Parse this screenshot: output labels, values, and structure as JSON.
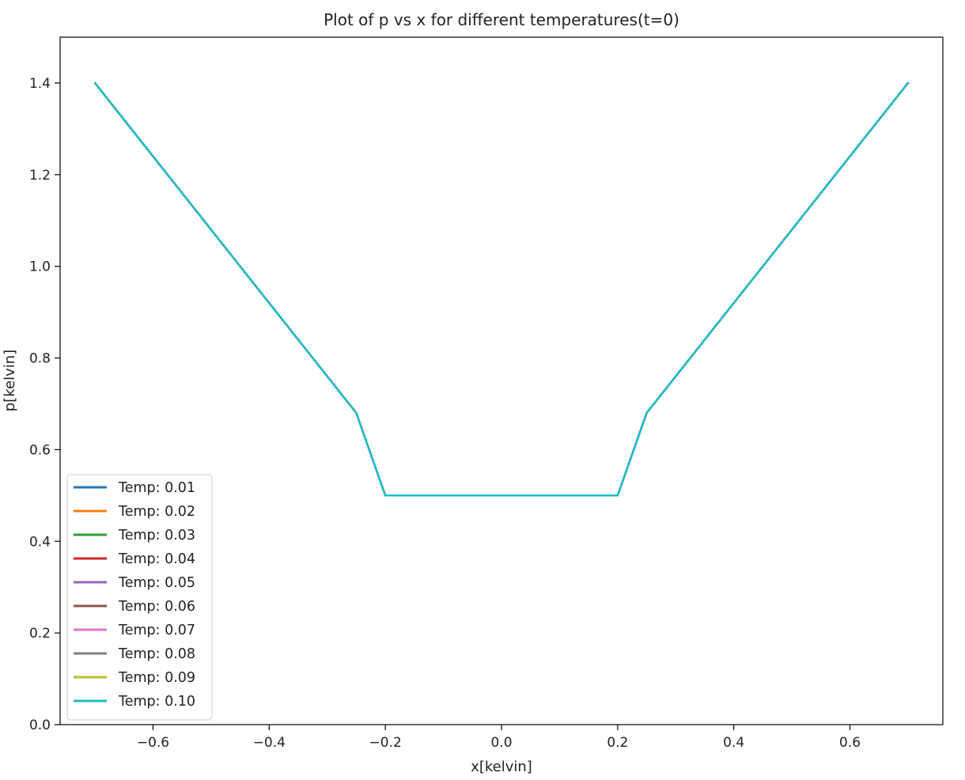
{
  "chart_data": {
    "type": "line",
    "title": "Plot of p vs x for different temperatures(t=0)",
    "xlabel": "x[kelvin]",
    "ylabel": "p[kelvin]",
    "xlim": [
      -0.76,
      0.76
    ],
    "ylim": [
      0.0,
      1.5
    ],
    "x_ticks": [
      -0.6,
      -0.4,
      -0.2,
      0.0,
      0.2,
      0.4,
      0.6
    ],
    "x_tick_labels": [
      "−0.6",
      "−0.4",
      "−0.2",
      "0.0",
      "0.2",
      "0.4",
      "0.6"
    ],
    "y_ticks": [
      0.0,
      0.2,
      0.4,
      0.6,
      0.8,
      1.0,
      1.2,
      1.4
    ],
    "y_tick_labels": [
      "0.0",
      "0.2",
      "0.4",
      "0.6",
      "0.8",
      "1.0",
      "1.2",
      "1.4"
    ],
    "grid": false,
    "legend_position": "lower-left",
    "x_range": [
      -0.7,
      0.7
    ],
    "series": [
      {
        "name": "Temp: 0.01",
        "temperature": 0.01,
        "color": "#1f77b4",
        "x": [
          -0.7,
          -0.6,
          -0.5,
          -0.4,
          -0.3,
          -0.25,
          -0.2,
          -0.1,
          0.0,
          0.1,
          0.2,
          0.25,
          0.3,
          0.4,
          0.5,
          0.6,
          0.7
        ],
        "y": [
          1.4,
          1.24,
          1.08,
          0.92,
          0.76,
          0.68,
          0.5,
          0.5,
          0.5,
          0.5,
          0.5,
          0.68,
          0.76,
          0.92,
          1.08,
          1.24,
          1.4
        ]
      },
      {
        "name": "Temp: 0.02",
        "temperature": 0.02,
        "color": "#ff7f0e",
        "x": [
          -0.7,
          -0.6,
          -0.5,
          -0.4,
          -0.3,
          -0.25,
          -0.2,
          -0.1,
          0.0,
          0.1,
          0.2,
          0.25,
          0.3,
          0.4,
          0.5,
          0.6,
          0.7
        ],
        "y": [
          1.4,
          1.24,
          1.08,
          0.92,
          0.76,
          0.68,
          0.5,
          0.5,
          0.5,
          0.5,
          0.5,
          0.68,
          0.76,
          0.92,
          1.08,
          1.24,
          1.4
        ]
      },
      {
        "name": "Temp: 0.03",
        "temperature": 0.03,
        "color": "#2ca02c",
        "x": [
          -0.7,
          -0.6,
          -0.5,
          -0.4,
          -0.3,
          -0.25,
          -0.2,
          -0.1,
          0.0,
          0.1,
          0.2,
          0.25,
          0.3,
          0.4,
          0.5,
          0.6,
          0.7
        ],
        "y": [
          1.4,
          1.24,
          1.08,
          0.92,
          0.76,
          0.68,
          0.5,
          0.5,
          0.5,
          0.5,
          0.5,
          0.68,
          0.76,
          0.92,
          1.08,
          1.24,
          1.4
        ]
      },
      {
        "name": "Temp: 0.04",
        "temperature": 0.04,
        "color": "#d62728",
        "x": [
          -0.7,
          -0.6,
          -0.5,
          -0.4,
          -0.3,
          -0.25,
          -0.2,
          -0.1,
          0.0,
          0.1,
          0.2,
          0.25,
          0.3,
          0.4,
          0.5,
          0.6,
          0.7
        ],
        "y": [
          1.4,
          1.24,
          1.08,
          0.92,
          0.76,
          0.68,
          0.5,
          0.5,
          0.5,
          0.5,
          0.5,
          0.68,
          0.76,
          0.92,
          1.08,
          1.24,
          1.4
        ]
      },
      {
        "name": "Temp: 0.05",
        "temperature": 0.05,
        "color": "#9467bd",
        "x": [
          -0.7,
          -0.6,
          -0.5,
          -0.4,
          -0.3,
          -0.25,
          -0.2,
          -0.1,
          0.0,
          0.1,
          0.2,
          0.25,
          0.3,
          0.4,
          0.5,
          0.6,
          0.7
        ],
        "y": [
          1.4,
          1.24,
          1.08,
          0.92,
          0.76,
          0.68,
          0.5,
          0.5,
          0.5,
          0.5,
          0.5,
          0.68,
          0.76,
          0.92,
          1.08,
          1.24,
          1.4
        ]
      },
      {
        "name": "Temp: 0.06",
        "temperature": 0.06,
        "color": "#8c564b",
        "x": [
          -0.7,
          -0.6,
          -0.5,
          -0.4,
          -0.3,
          -0.25,
          -0.2,
          -0.1,
          0.0,
          0.1,
          0.2,
          0.25,
          0.3,
          0.4,
          0.5,
          0.6,
          0.7
        ],
        "y": [
          1.4,
          1.24,
          1.08,
          0.92,
          0.76,
          0.68,
          0.5,
          0.5,
          0.5,
          0.5,
          0.5,
          0.68,
          0.76,
          0.92,
          1.08,
          1.24,
          1.4
        ]
      },
      {
        "name": "Temp: 0.07",
        "temperature": 0.07,
        "color": "#e377c2",
        "x": [
          -0.7,
          -0.6,
          -0.5,
          -0.4,
          -0.3,
          -0.25,
          -0.2,
          -0.1,
          0.0,
          0.1,
          0.2,
          0.25,
          0.3,
          0.4,
          0.5,
          0.6,
          0.7
        ],
        "y": [
          1.4,
          1.24,
          1.08,
          0.92,
          0.76,
          0.68,
          0.5,
          0.5,
          0.5,
          0.5,
          0.5,
          0.68,
          0.76,
          0.92,
          1.08,
          1.24,
          1.4
        ]
      },
      {
        "name": "Temp: 0.08",
        "temperature": 0.08,
        "color": "#7f7f7f",
        "x": [
          -0.7,
          -0.6,
          -0.5,
          -0.4,
          -0.3,
          -0.25,
          -0.2,
          -0.1,
          0.0,
          0.1,
          0.2,
          0.25,
          0.3,
          0.4,
          0.5,
          0.6,
          0.7
        ],
        "y": [
          1.4,
          1.24,
          1.08,
          0.92,
          0.76,
          0.68,
          0.5,
          0.5,
          0.5,
          0.5,
          0.5,
          0.68,
          0.76,
          0.92,
          1.08,
          1.24,
          1.4
        ]
      },
      {
        "name": "Temp: 0.09",
        "temperature": 0.09,
        "color": "#bcbd22",
        "x": [
          -0.7,
          -0.6,
          -0.5,
          -0.4,
          -0.3,
          -0.25,
          -0.2,
          -0.1,
          0.0,
          0.1,
          0.2,
          0.25,
          0.3,
          0.4,
          0.5,
          0.6,
          0.7
        ],
        "y": [
          1.4,
          1.24,
          1.08,
          0.92,
          0.76,
          0.68,
          0.5,
          0.5,
          0.5,
          0.5,
          0.5,
          0.68,
          0.76,
          0.92,
          1.08,
          1.24,
          1.4
        ]
      },
      {
        "name": "Temp: 0.10",
        "temperature": 0.1,
        "color": "#17becf",
        "x": [
          -0.7,
          -0.6,
          -0.5,
          -0.4,
          -0.3,
          -0.25,
          -0.2,
          -0.1,
          0.0,
          0.1,
          0.2,
          0.25,
          0.3,
          0.4,
          0.5,
          0.6,
          0.7
        ],
        "y": [
          1.4,
          1.24,
          1.08,
          0.92,
          0.76,
          0.68,
          0.5,
          0.5,
          0.5,
          0.5,
          0.5,
          0.68,
          0.76,
          0.92,
          1.08,
          1.24,
          1.4
        ]
      }
    ]
  }
}
